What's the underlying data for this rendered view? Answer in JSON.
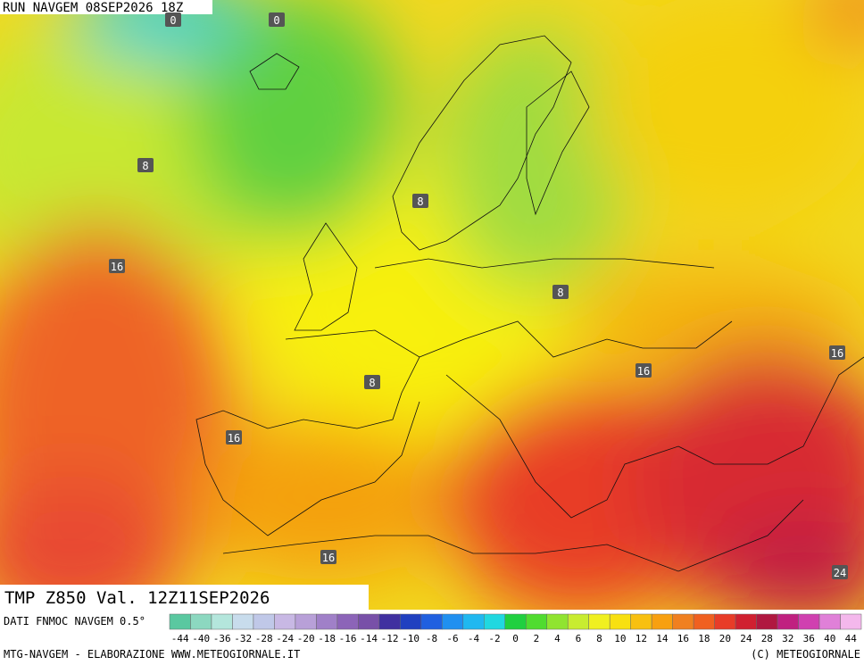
{
  "header": {
    "run": "RUN NAVGEM 08SEP2026 18Z"
  },
  "map": {
    "contour_labels": [
      "0",
      "0",
      "8",
      "8",
      "8",
      "8",
      "16",
      "16",
      "16",
      "16",
      "16",
      "24"
    ]
  },
  "footer": {
    "title": "TMP Z850 Val. 12Z11SEP2026",
    "source": "DATI FNMOC NAVGEM 0.5°",
    "credit": "MTG-NAVGEM - ELABORAZIONE WWW.METEOGIORNALE.IT",
    "copyright": "(C) METEOGIORNALE"
  },
  "legend": {
    "labels": [
      "-44",
      "-40",
      "-36",
      "-32",
      "-28",
      "-24",
      "-20",
      "-18",
      "-16",
      "-14",
      "-12",
      "-10",
      "-8",
      "-6",
      "-4",
      "-2",
      "0",
      "2",
      "4",
      "6",
      "8",
      "10",
      "12",
      "14",
      "16",
      "18",
      "20",
      "24",
      "28",
      "32",
      "36",
      "40",
      "44"
    ],
    "colors": [
      "#5ac8a0",
      "#8cd8c0",
      "#b4e6dc",
      "#c8dcec",
      "#c0c8e8",
      "#c8b8e4",
      "#b8a0d8",
      "#a080c8",
      "#8c64b8",
      "#7850a8",
      "#4030a0",
      "#2040c0",
      "#2060e0",
      "#2090f0",
      "#20b8f0",
      "#20d8e0",
      "#20d040",
      "#50dc30",
      "#90e430",
      "#c8ec30",
      "#f0f020",
      "#f8e010",
      "#f8c010",
      "#f8a010",
      "#f08020",
      "#f06020",
      "#e83c28",
      "#d02030",
      "#b01840",
      "#c02080",
      "#d040b0",
      "#e080d8",
      "#f4b8ec"
    ]
  }
}
